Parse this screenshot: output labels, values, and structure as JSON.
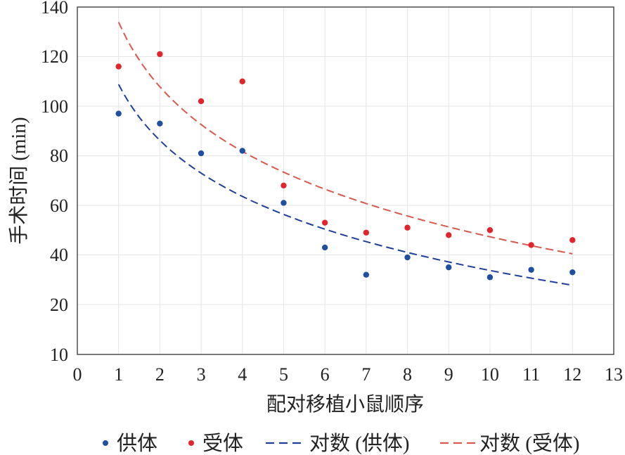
{
  "chart_data": {
    "type": "scatter",
    "xlabel": "配对移植小鼠顺序",
    "ylabel": "手术时间 (min)",
    "xlim": [
      0,
      13
    ],
    "ylim": [
      10,
      140
    ],
    "x_ticks": [
      "0",
      "1",
      "2",
      "3",
      "4",
      "5",
      "6",
      "7",
      "8",
      "9",
      "10",
      "11",
      "12",
      "13"
    ],
    "y_ticks": [
      "10",
      "20",
      "40",
      "60",
      "80",
      "100",
      "120",
      "140"
    ],
    "grid": true,
    "legend_position": "bottom",
    "series": [
      {
        "name": "供体",
        "kind": "scatter",
        "color": "#1f4fa0",
        "x": [
          1,
          2,
          3,
          4,
          5,
          6,
          7,
          8,
          9,
          10,
          11,
          12
        ],
        "y": [
          97,
          93,
          81,
          82,
          61,
          43,
          32,
          39,
          35,
          31,
          34,
          33
        ]
      },
      {
        "name": "受体",
        "kind": "scatter",
        "color": "#e0262a",
        "x": [
          1,
          2,
          3,
          4,
          5,
          6,
          7,
          8,
          9,
          10,
          11,
          12
        ],
        "y": [
          116,
          121,
          102,
          110,
          68,
          53,
          49,
          51,
          48,
          50,
          44,
          46
        ]
      },
      {
        "name": "对数 (供体)",
        "kind": "trendline-log",
        "color": "#1f3f9c",
        "dash": "dashed",
        "a": 108.8,
        "b": -32.6
      },
      {
        "name": "对数 (受体)",
        "kind": "trendline-log",
        "color": "#d9584c",
        "dash": "dashed",
        "a": 133.9,
        "b": -37.6
      }
    ]
  }
}
